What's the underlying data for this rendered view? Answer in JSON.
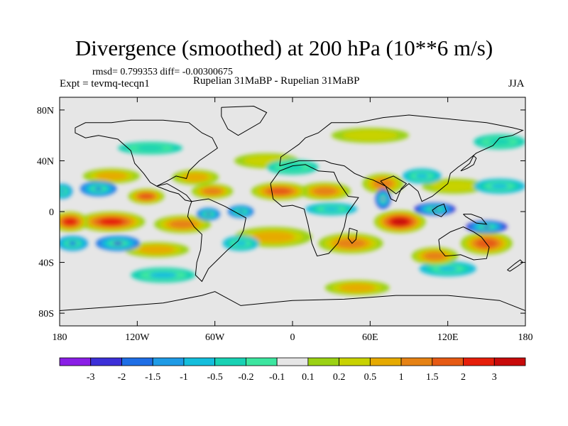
{
  "chart_data": {
    "type": "heatmap",
    "title": "Divergence (smoothed) at 200 hPa (10**6 m/s)",
    "stats_line": "rmsd= 0.799353 diff= -0.00300675",
    "left_label": "Expt = tevmq-tecqn1",
    "center_label": "Rupelian  31MaBP - Rupelian  31MaBP",
    "right_label": "JJA",
    "x_axis": {
      "range": [
        -180,
        180
      ],
      "ticks": [
        {
          "value": -180,
          "label": "180"
        },
        {
          "value": -120,
          "label": "120W"
        },
        {
          "value": -60,
          "label": "60W"
        },
        {
          "value": 0,
          "label": "0"
        },
        {
          "value": 60,
          "label": "60E"
        },
        {
          "value": 120,
          "label": "120E"
        },
        {
          "value": 180,
          "label": "180"
        }
      ]
    },
    "y_axis": {
      "range": [
        -90,
        90
      ],
      "ticks": [
        {
          "value": 80,
          "label": "80N"
        },
        {
          "value": 40,
          "label": "40N"
        },
        {
          "value": 0,
          "label": "0"
        },
        {
          "value": -40,
          "label": "40S"
        },
        {
          "value": -80,
          "label": "80S"
        }
      ]
    },
    "colorbar": {
      "levels": [
        "-3",
        "-2",
        "-1.5",
        "-1",
        "-0.5",
        "-0.2",
        "-0.1",
        "0.1",
        "0.2",
        "0.5",
        "1",
        "1.5",
        "2",
        "3"
      ],
      "colors": [
        "#8a1ee6",
        "#3c2fd8",
        "#1e6ee6",
        "#1e9be6",
        "#14bedc",
        "#18d2b4",
        "#3ce6a0",
        "#e6e6e6",
        "#9bd214",
        "#c8d200",
        "#e6aa00",
        "#e68214",
        "#e65a14",
        "#e61e0a",
        "#c80a0a"
      ]
    },
    "field_features": [
      {
        "lon": 83,
        "lat": -8,
        "value": 3.2,
        "rx": 20,
        "ry": 9
      },
      {
        "lon": -140,
        "lat": -8,
        "value": 2.4,
        "rx": 26,
        "ry": 8
      },
      {
        "lon": -172,
        "lat": -8,
        "value": 2.4,
        "rx": 14,
        "ry": 8
      },
      {
        "lon": -85,
        "lat": -10,
        "value": 1.3,
        "rx": 22,
        "ry": 7
      },
      {
        "lon": -10,
        "lat": 16,
        "value": 1.7,
        "rx": 22,
        "ry": 7
      },
      {
        "lon": 25,
        "lat": 16,
        "value": 1.3,
        "rx": 20,
        "ry": 7
      },
      {
        "lon": -113,
        "lat": 12,
        "value": 1.8,
        "rx": 14,
        "ry": 6
      },
      {
        "lon": -62,
        "lat": 16,
        "value": 1.2,
        "rx": 16,
        "ry": 6
      },
      {
        "lon": 70,
        "lat": 22,
        "value": 1.5,
        "rx": 16,
        "ry": 8
      },
      {
        "lon": 150,
        "lat": -25,
        "value": 1.6,
        "rx": 20,
        "ry": 9
      },
      {
        "lon": 110,
        "lat": -35,
        "value": 1.2,
        "rx": 18,
        "ry": 7
      },
      {
        "lon": 45,
        "lat": -25,
        "value": 1.1,
        "rx": 25,
        "ry": 8
      },
      {
        "lon": -75,
        "lat": 27,
        "value": 1.0,
        "rx": 18,
        "ry": 6
      },
      {
        "lon": -105,
        "lat": -30,
        "value": 1.0,
        "rx": 25,
        "ry": 6
      },
      {
        "lon": -15,
        "lat": -20,
        "value": 0.6,
        "rx": 30,
        "ry": 8
      },
      {
        "lon": 50,
        "lat": -60,
        "value": 0.8,
        "rx": 25,
        "ry": 6
      },
      {
        "lon": -140,
        "lat": 28,
        "value": 0.7,
        "rx": 22,
        "ry": 6
      },
      {
        "lon": 125,
        "lat": 20,
        "value": 0.5,
        "rx": 25,
        "ry": 6
      },
      {
        "lon": -20,
        "lat": 40,
        "value": 0.4,
        "rx": 25,
        "ry": 6
      },
      {
        "lon": 70,
        "lat": 10,
        "value": -3.0,
        "rx": 6,
        "ry": 8
      },
      {
        "lon": 110,
        "lat": 2,
        "value": -2.4,
        "rx": 16,
        "ry": 5
      },
      {
        "lon": 150,
        "lat": -12,
        "value": -2.2,
        "rx": 16,
        "ry": 5
      },
      {
        "lon": -65,
        "lat": -2,
        "value": -2.0,
        "rx": 9,
        "ry": 5
      },
      {
        "lon": -40,
        "lat": 0,
        "value": -1.6,
        "rx": 10,
        "ry": 5
      },
      {
        "lon": -135,
        "lat": -25,
        "value": -2.0,
        "rx": 17,
        "ry": 6
      },
      {
        "lon": -170,
        "lat": -25,
        "value": -1.5,
        "rx": 12,
        "ry": 6
      },
      {
        "lon": -150,
        "lat": 18,
        "value": -1.6,
        "rx": 14,
        "ry": 6
      },
      {
        "lon": -178,
        "lat": 16,
        "value": -1.2,
        "rx": 8,
        "ry": 6
      },
      {
        "lon": -40,
        "lat": -25,
        "value": -0.8,
        "rx": 14,
        "ry": 6
      },
      {
        "lon": 30,
        "lat": 2,
        "value": -0.7,
        "rx": 20,
        "ry": 5
      },
      {
        "lon": 100,
        "lat": 28,
        "value": -0.8,
        "rx": 15,
        "ry": 6
      },
      {
        "lon": 160,
        "lat": 20,
        "value": -0.6,
        "rx": 20,
        "ry": 6
      },
      {
        "lon": 120,
        "lat": -45,
        "value": -0.7,
        "rx": 22,
        "ry": 6
      },
      {
        "lon": -100,
        "lat": -50,
        "value": -0.5,
        "rx": 25,
        "ry": 6
      },
      {
        "lon": 0,
        "lat": 35,
        "value": -0.4,
        "rx": 20,
        "ry": 6
      },
      {
        "lon": -110,
        "lat": 50,
        "value": -0.3,
        "rx": 25,
        "ry": 5
      },
      {
        "lon": 60,
        "lat": 60,
        "value": 0.3,
        "rx": 30,
        "ry": 6
      },
      {
        "lon": 160,
        "lat": 55,
        "value": -0.3,
        "rx": 20,
        "ry": 6
      }
    ]
  }
}
